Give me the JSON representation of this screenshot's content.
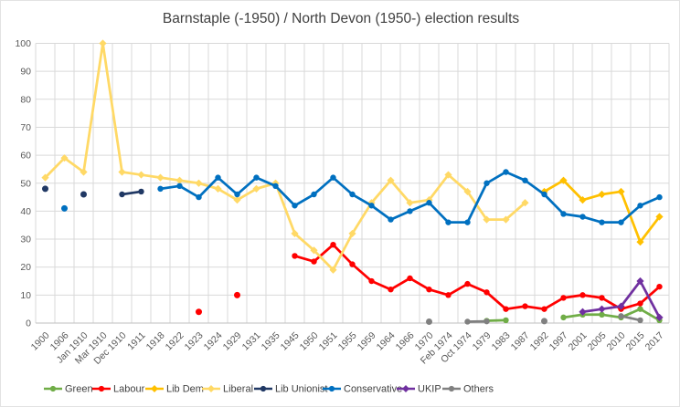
{
  "title": "Barnstaple (-1950) / North Devon (1950-) election results",
  "colors": {
    "grid": "#d9d9d9",
    "axis": "#bfbfbf",
    "tick_text": "#595959",
    "title_text": "#404040",
    "legend_text": "#404040",
    "background": "#ffffff"
  },
  "chart_data": {
    "type": "line",
    "title": "Barnstaple (-1950) / North Devon (1950-) election results",
    "xlabel": "",
    "ylabel": "",
    "grid": true,
    "legend_position": "bottom",
    "y_axis": {
      "min": 0,
      "max": 100,
      "tick_step": 10,
      "tick_labels": [
        "0",
        "10",
        "20",
        "30",
        "40",
        "50",
        "60",
        "70",
        "80",
        "90",
        "100"
      ]
    },
    "categories": [
      "1900",
      "1906",
      "Jan 1910",
      "Mar 1910",
      "Dec 1910",
      "1911",
      "1918",
      "1922",
      "1923",
      "1924",
      "1929",
      "1931",
      "1935",
      "1945",
      "1950",
      "1951",
      "1955",
      "1959",
      "1964",
      "1966",
      "1970",
      "Feb 1974",
      "Oct 1974",
      "1979",
      "1983",
      "1987",
      "1992",
      "1997",
      "2001",
      "2005",
      "2010",
      "2015",
      "2017"
    ],
    "series": [
      {
        "name": "Green",
        "color": "#70ad47",
        "marker": "circle",
        "values": [
          null,
          null,
          null,
          null,
          null,
          null,
          null,
          null,
          null,
          null,
          null,
          null,
          null,
          null,
          null,
          null,
          null,
          null,
          null,
          null,
          null,
          null,
          null,
          0.8,
          1,
          null,
          null,
          2,
          3,
          3,
          2,
          5,
          1
        ]
      },
      {
        "name": "Labour",
        "color": "#ff0000",
        "marker": "circle",
        "values": [
          null,
          null,
          null,
          null,
          null,
          null,
          null,
          null,
          4,
          null,
          10,
          null,
          null,
          24,
          22,
          28,
          21,
          15,
          12,
          16,
          12,
          10,
          14,
          11,
          5,
          6,
          5,
          9,
          10,
          9,
          5,
          7,
          13
        ]
      },
      {
        "name": "Lib Dem",
        "color": "#ffc000",
        "marker": "diamond",
        "values": [
          null,
          null,
          null,
          null,
          null,
          null,
          null,
          null,
          null,
          null,
          null,
          null,
          null,
          null,
          null,
          null,
          null,
          null,
          null,
          null,
          null,
          null,
          null,
          null,
          null,
          null,
          47,
          51,
          44,
          46,
          47,
          29,
          38
        ]
      },
      {
        "name": "Liberal",
        "color": "#ffd966",
        "marker": "diamond",
        "values": [
          52,
          59,
          54,
          100,
          54,
          53,
          52,
          51,
          50,
          48,
          44,
          48,
          50,
          32,
          26,
          19,
          32,
          43,
          51,
          43,
          44,
          53,
          47,
          37,
          37,
          43,
          null,
          null,
          null,
          null,
          null,
          null,
          null
        ]
      },
      {
        "name": "Lib Unionist",
        "color": "#203864",
        "marker": "circle",
        "values": [
          48,
          null,
          46,
          null,
          46,
          47,
          null,
          null,
          null,
          null,
          null,
          null,
          null,
          null,
          null,
          null,
          null,
          null,
          null,
          null,
          null,
          null,
          null,
          null,
          null,
          null,
          null,
          null,
          null,
          null,
          null,
          null,
          null
        ]
      },
      {
        "name": "Conservative",
        "color": "#0070c0",
        "marker": "circle",
        "values": [
          null,
          41,
          null,
          null,
          null,
          null,
          48,
          49,
          45,
          52,
          46,
          52,
          49,
          42,
          46,
          52,
          46,
          42,
          37,
          40,
          43,
          36,
          36,
          50,
          54,
          51,
          46,
          39,
          38,
          36,
          36,
          42,
          45
        ]
      },
      {
        "name": "UKIP",
        "color": "#7030a0",
        "marker": "diamond",
        "values": [
          null,
          null,
          null,
          null,
          null,
          null,
          null,
          null,
          null,
          null,
          null,
          null,
          null,
          null,
          null,
          null,
          null,
          null,
          null,
          null,
          null,
          null,
          null,
          null,
          null,
          null,
          null,
          null,
          4,
          5,
          6,
          15,
          2
        ]
      },
      {
        "name": "Others",
        "color": "#808080",
        "marker": "circle",
        "values": [
          null,
          null,
          null,
          null,
          null,
          null,
          null,
          null,
          null,
          null,
          null,
          null,
          null,
          null,
          null,
          null,
          null,
          null,
          null,
          null,
          0.5,
          null,
          0.5,
          0.6,
          null,
          null,
          0.7,
          null,
          null,
          null,
          2.5,
          1,
          null
        ]
      }
    ]
  }
}
